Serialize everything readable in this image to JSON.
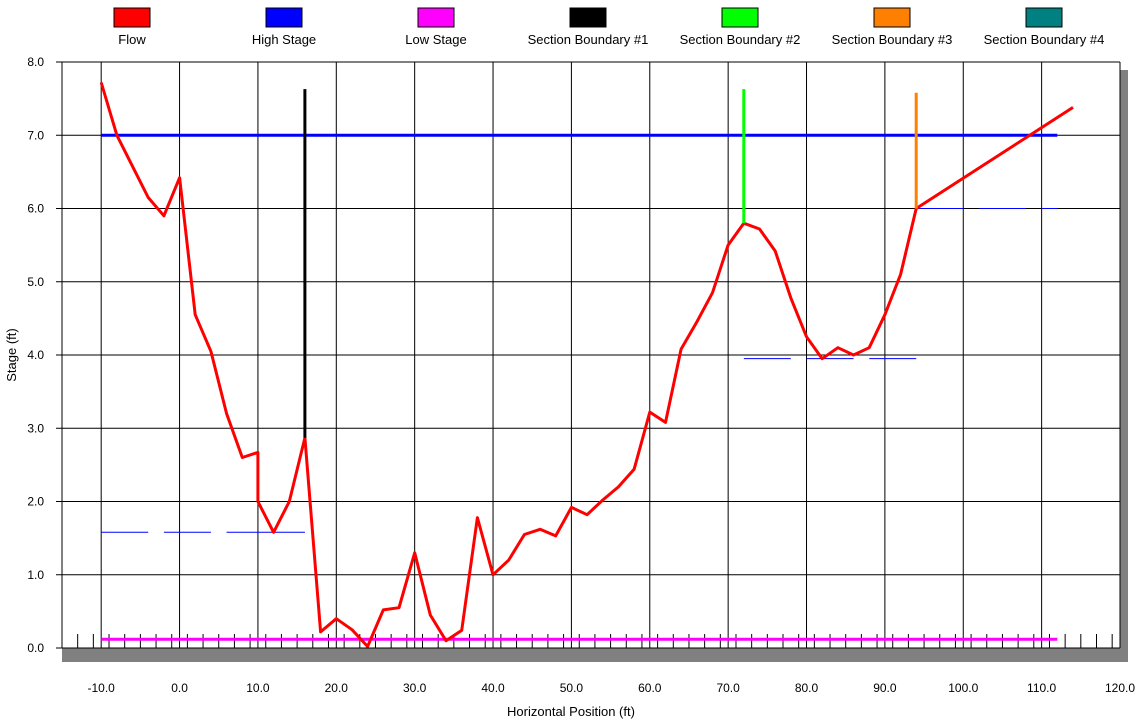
{
  "chart_data": {
    "type": "line",
    "xlabel": "Horizontal Position (ft)",
    "ylabel": "Stage (ft)",
    "xlim": [
      -15,
      120
    ],
    "ylim": [
      0,
      8
    ],
    "grid": true,
    "legend_placement": "top",
    "x_ticks": [
      "-10.0",
      "0.0",
      "10.0",
      "20.0",
      "30.0",
      "40.0",
      "50.0",
      "60.0",
      "70.0",
      "80.0",
      "90.0",
      "100.0",
      "110.0",
      "120.0"
    ],
    "y_ticks": [
      "0.0",
      "1.0",
      "2.0",
      "3.0",
      "4.0",
      "5.0",
      "6.0",
      "7.0",
      "8.0"
    ],
    "legend": [
      {
        "name": "Flow",
        "color": "#ff0000"
      },
      {
        "name": "High Stage",
        "color": "#0000ff"
      },
      {
        "name": "Low Stage",
        "color": "#ff00ff"
      },
      {
        "name": "Section Boundary #1",
        "color": "#000000"
      },
      {
        "name": "Section Boundary #2",
        "color": "#00ff00"
      },
      {
        "name": "Section Boundary #3",
        "color": "#ff8000"
      },
      {
        "name": "Section Boundary #4",
        "color": "#008080"
      }
    ],
    "series": [
      {
        "name": "Flow",
        "color": "#ff0000",
        "points": [
          [
            -10,
            7.72
          ],
          [
            -8,
            7.0
          ],
          [
            -4,
            6.15
          ],
          [
            -2,
            5.9
          ],
          [
            0,
            6.42
          ],
          [
            2,
            4.55
          ],
          [
            4,
            4.05
          ],
          [
            6,
            3.2
          ],
          [
            8,
            2.6
          ],
          [
            10,
            2.67
          ],
          [
            10,
            2.0
          ],
          [
            12,
            1.58
          ],
          [
            14,
            2.0
          ],
          [
            16,
            2.87
          ],
          [
            18,
            0.22
          ],
          [
            20,
            0.4
          ],
          [
            22,
            0.25
          ],
          [
            24,
            0.02
          ],
          [
            26,
            0.52
          ],
          [
            28,
            0.55
          ],
          [
            30,
            1.3
          ],
          [
            32,
            0.45
          ],
          [
            34,
            0.1
          ],
          [
            36,
            0.24
          ],
          [
            38,
            1.78
          ],
          [
            40,
            1.0
          ],
          [
            42,
            1.2
          ],
          [
            44,
            1.55
          ],
          [
            46,
            1.62
          ],
          [
            48,
            1.53
          ],
          [
            50,
            1.92
          ],
          [
            52,
            1.82
          ],
          [
            54,
            2.02
          ],
          [
            56,
            2.2
          ],
          [
            58,
            2.44
          ],
          [
            60,
            3.22
          ],
          [
            62,
            3.08
          ],
          [
            64,
            4.08
          ],
          [
            66,
            4.45
          ],
          [
            68,
            4.85
          ],
          [
            70,
            5.5
          ],
          [
            72,
            5.8
          ],
          [
            74,
            5.72
          ],
          [
            76,
            5.42
          ],
          [
            78,
            4.78
          ],
          [
            80,
            4.25
          ],
          [
            82,
            3.95
          ],
          [
            84,
            4.1
          ],
          [
            86,
            4.0
          ],
          [
            88,
            4.1
          ],
          [
            90,
            4.55
          ],
          [
            92,
            5.1
          ],
          [
            94,
            6.0
          ],
          [
            114,
            7.38
          ]
        ]
      },
      {
        "name": "High Stage",
        "color": "#0000ff",
        "points": [
          [
            -10,
            7.0
          ],
          [
            112,
            7.0
          ]
        ]
      },
      {
        "name": "Low Stage",
        "color": "#ff00ff",
        "points": [
          [
            -10,
            0.12
          ],
          [
            112,
            0.12
          ]
        ]
      },
      {
        "name": "Section Boundary #1",
        "color": "#000000",
        "points": [
          [
            16,
            2.87
          ],
          [
            16,
            7.63
          ]
        ]
      },
      {
        "name": "Section Boundary #2",
        "color": "#00ff00",
        "points": [
          [
            72,
            5.8
          ],
          [
            72,
            7.63
          ]
        ]
      },
      {
        "name": "Section Boundary #3",
        "color": "#ff8000",
        "points": [
          [
            94,
            6.0
          ],
          [
            94,
            7.58
          ]
        ]
      }
    ],
    "dashed_water_lines": [
      {
        "y": 1.58,
        "segments": [
          [
            -10,
            -4
          ],
          [
            -2,
            4
          ],
          [
            6,
            16
          ]
        ]
      },
      {
        "y": 0.0,
        "segments": [
          [
            16,
            22
          ],
          [
            24,
            30
          ],
          [
            32,
            38
          ],
          [
            40,
            46
          ],
          [
            48,
            54
          ],
          [
            56,
            62
          ],
          [
            64,
            70
          ]
        ]
      },
      {
        "y": 3.95,
        "segments": [
          [
            72,
            78
          ],
          [
            80,
            86
          ],
          [
            88,
            94
          ]
        ]
      },
      {
        "y": 6.0,
        "segments": [
          [
            94,
            100
          ],
          [
            102,
            108
          ],
          [
            110,
            112
          ]
        ]
      }
    ]
  }
}
